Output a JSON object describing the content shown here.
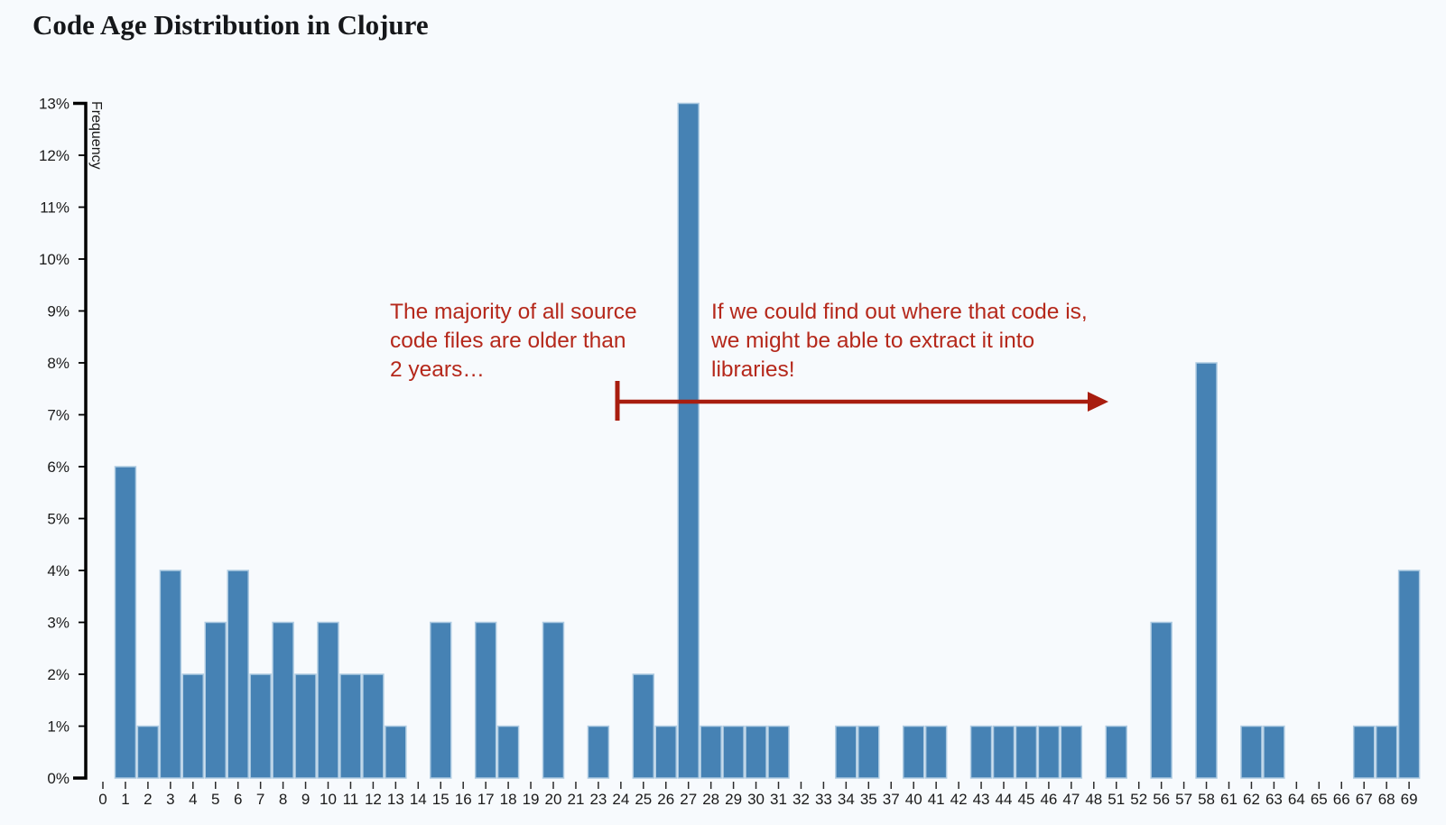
{
  "page": {
    "background": "#f7fafd"
  },
  "chart_data": {
    "type": "bar",
    "title": "Code Age Distribution in Clojure",
    "xlabel": "",
    "ylabel": "Frequency",
    "categories": [
      "0",
      "1",
      "2",
      "3",
      "4",
      "5",
      "6",
      "7",
      "8",
      "9",
      "10",
      "11",
      "12",
      "13",
      "14",
      "15",
      "16",
      "17",
      "18",
      "19",
      "20",
      "21",
      "23",
      "24",
      "25",
      "26",
      "27",
      "28",
      "29",
      "30",
      "31",
      "32",
      "33",
      "34",
      "35",
      "37",
      "40",
      "41",
      "42",
      "43",
      "44",
      "45",
      "46",
      "47",
      "48",
      "51",
      "52",
      "56",
      "57",
      "58",
      "61",
      "62",
      "63",
      "64",
      "65",
      "66",
      "67",
      "68",
      "69"
    ],
    "values": [
      0,
      6,
      1,
      4,
      2,
      3,
      4,
      2,
      3,
      2,
      3,
      2,
      2,
      1,
      0,
      3,
      0,
      3,
      1,
      0,
      3,
      0,
      1,
      0,
      2,
      1,
      13,
      1,
      1,
      1,
      1,
      0,
      0,
      1,
      1,
      0,
      1,
      1,
      0,
      1,
      1,
      1,
      1,
      1,
      0,
      1,
      0,
      3,
      0,
      8,
      0,
      1,
      1,
      0,
      0,
      0,
      1,
      1,
      4
    ],
    "ylim": [
      0,
      13
    ],
    "ytick_labels": [
      "0%",
      "1%",
      "2%",
      "3%",
      "4%",
      "5%",
      "6%",
      "7%",
      "8%",
      "9%",
      "10%",
      "11%",
      "12%",
      "13%"
    ],
    "grid": false,
    "legend": null,
    "colors": {
      "bar_fill": "#4682b4",
      "bar_stroke": "#aecbe2",
      "axis": "#000000",
      "tick_text": "#1a1a1a",
      "annotation_text": "#b5281b",
      "annotation_arrow": "#a81d0f"
    },
    "annotations": [
      {
        "id": "left-note",
        "lines": [
          "The majority of all source",
          "code files are older than",
          "2 years…"
        ]
      },
      {
        "id": "right-note",
        "lines": [
          "If we could find out where that code is,",
          "we might be able to extract it into",
          "libraries!"
        ]
      },
      {
        "id": "range-arrow",
        "kind": "arrow-right"
      }
    ]
  }
}
